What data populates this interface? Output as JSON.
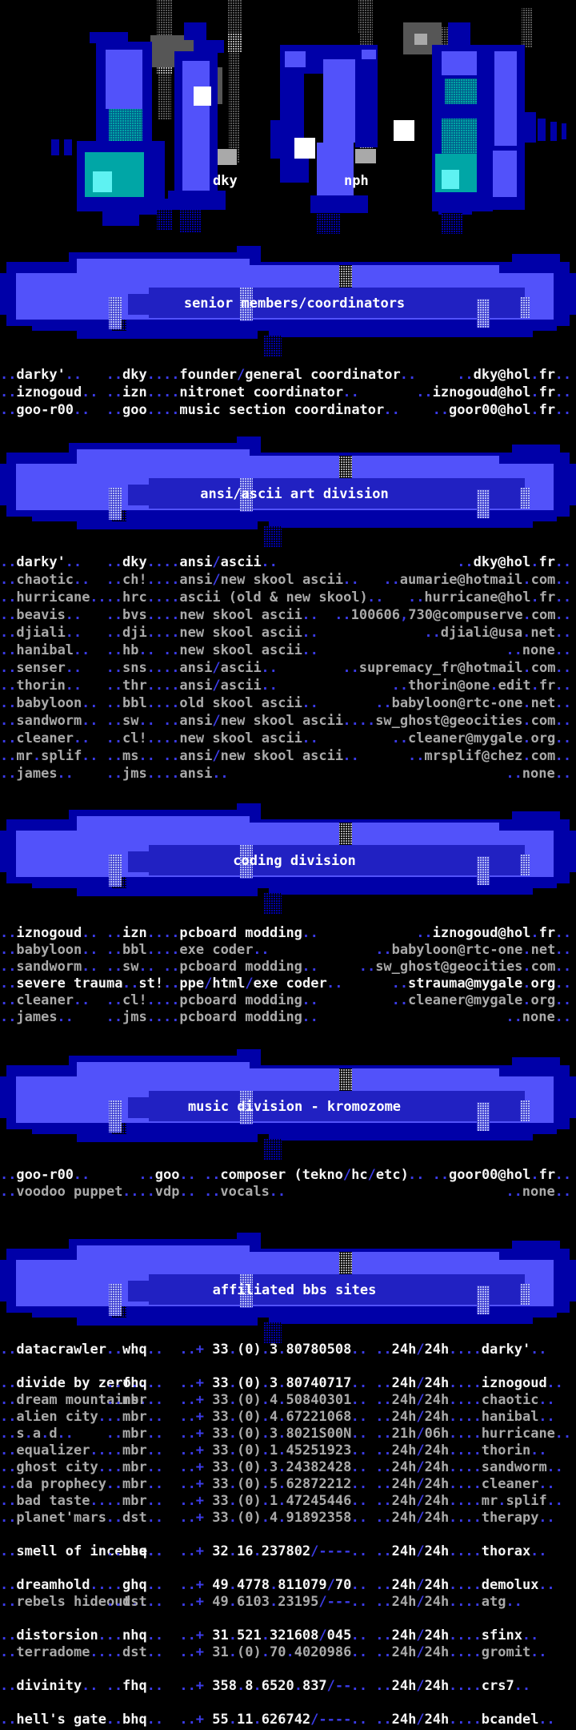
{
  "logo": {
    "artist_credits": [
      {
        "label": "dky"
      },
      {
        "label": "nph"
      }
    ]
  },
  "colors": {
    "bright_blue": "#5252fa",
    "dark_blue": "#0000a8",
    "mid_blue": "#2121c2",
    "teal": "#00a6a6",
    "cyan": "#5ef2f2",
    "white": "#f4f4f4",
    "grey": "#a9a9a9",
    "accent_blue": "#3b3be8"
  },
  "sections": [
    {
      "id": "senior",
      "banner": "senior members/coordinators",
      "type": "members",
      "rows": [
        {
          "name": "darky'",
          "handle": "dky",
          "role": "founder/general coordinator",
          "email": "dky@hol.fr",
          "bright": true
        },
        {
          "name": "iznogoud",
          "handle": "izn",
          "role": "nitronet coordinator",
          "email": "iznogoud@hol.fr",
          "bright": true
        },
        {
          "name": "goo-r00",
          "handle": "goo",
          "role": "music section coordinator",
          "email": "goor00@hol.fr",
          "bright": true
        }
      ]
    },
    {
      "id": "ansi",
      "banner": "ansi/ascii art division",
      "type": "members",
      "rows": [
        {
          "name": "darky'",
          "handle": "dky",
          "role": "ansi/ascii",
          "email": "dky@hol.fr",
          "bright": true
        },
        {
          "name": "chaotic",
          "handle": "ch!",
          "role": "ansi/new skool ascii",
          "email": "aumarie@hotmail.com",
          "bright": false
        },
        {
          "name": "hurricane",
          "handle": "hrc",
          "role": "ascii (old & new skool)",
          "email": "hurricane@hol.fr",
          "bright": false
        },
        {
          "name": "beavis",
          "handle": "bvs",
          "role": "new skool ascii",
          "email": "100606,730@compuserve.com",
          "bright": false
        },
        {
          "name": "djiali",
          "handle": "dji",
          "role": "new skool ascii",
          "email": "djiali@usa.net",
          "bright": false
        },
        {
          "name": "hanibal",
          "handle": "hb",
          "role": "new skool ascii",
          "email": "none",
          "bright": false
        },
        {
          "name": "senser",
          "handle": "sns",
          "role": "ansi/ascii",
          "email": "supremacy_fr@hotmail.com",
          "bright": false
        },
        {
          "name": "thorin",
          "handle": "thr",
          "role": "ansi/ascii",
          "email": "thorin@one.edit.fr",
          "bright": false
        },
        {
          "name": "babyloon",
          "handle": "bbl",
          "role": "old skool ascii",
          "email": "babyloon@rtc-one.net",
          "bright": false
        },
        {
          "name": "sandworm",
          "handle": "sw",
          "role": "ansi/new skool ascii",
          "email": "sw_ghost@geocities.com",
          "bright": false
        },
        {
          "name": "cleaner",
          "handle": "cl!",
          "role": "new skool ascii",
          "email": "cleaner@mygale.org",
          "bright": false
        },
        {
          "name": "mr.splif",
          "handle": "ms",
          "role": "ansi/new skool ascii",
          "email": "mrsplif@chez.com",
          "bright": false
        },
        {
          "name": "james",
          "handle": "jms",
          "role": "ansi",
          "email": "none",
          "bright": false
        }
      ]
    },
    {
      "id": "coding",
      "banner": "coding division",
      "type": "members",
      "rows": [
        {
          "name": "iznogoud",
          "handle": "izn",
          "role": "pcboard modding",
          "email": "iznogoud@hol.fr",
          "bright": true
        },
        {
          "name": "babyloon",
          "handle": "bbl",
          "role": "exe coder",
          "email": "babyloon@rtc-one.net",
          "bright": false
        },
        {
          "name": "sandworm",
          "handle": "sw",
          "role": "pcboard modding",
          "email": "sw_ghost@geocities.com",
          "bright": false
        },
        {
          "name": "severe trauma",
          "handle": "st!",
          "role": "ppe/html/exe coder",
          "email": "strauma@mygale.org",
          "bright": true
        },
        {
          "name": "cleaner",
          "handle": "cl!",
          "role": "pcboard modding",
          "email": "cleaner@mygale.org",
          "bright": false
        },
        {
          "name": "james",
          "handle": "jms",
          "role": "pcboard modding",
          "email": "none",
          "bright": false
        }
      ]
    },
    {
      "id": "music",
      "banner": "music division - kromozome",
      "type": "members",
      "rows": [
        {
          "name": "goo-r00",
          "handle": "goo",
          "role": "composer (tekno/hc/etc)",
          "email": "goor00@hol.fr",
          "bright": true
        },
        {
          "name": "voodoo puppet",
          "handle": "vdp",
          "role": "vocals",
          "email": "none",
          "bright": false
        }
      ]
    },
    {
      "id": "bbs",
      "banner": "affiliated bbs sites",
      "type": "bbs",
      "rows": [
        {
          "name": "datacrawler",
          "tier": "whq",
          "phone": "33.(0).3.80780508",
          "hours": "24h/24h",
          "sysop": "darky'",
          "bright": true,
          "group": 0
        },
        {
          "name": "divide by zero",
          "tier": "fhq",
          "phone": "33.(0).3.80740717",
          "hours": "24h/24h",
          "sysop": "iznogoud",
          "bright": true,
          "group": 1
        },
        {
          "name": "dream mountains",
          "tier": "mbr",
          "phone": "33.(0).4.50840301",
          "hours": "24h/24h",
          "sysop": "chaotic",
          "bright": false,
          "group": 1
        },
        {
          "name": "alien city",
          "tier": "mbr",
          "phone": "33.(0).4.67221068",
          "hours": "24h/24h",
          "sysop": "hanibal",
          "bright": false,
          "group": 1
        },
        {
          "name": "s.a.d",
          "tier": "mbr",
          "phone": "33.(0).3.8021S00N",
          "hours": "21h/06h",
          "sysop": "hurricane",
          "bright": false,
          "group": 1
        },
        {
          "name": "equalizer",
          "tier": "mbr",
          "phone": "33.(0).1.45251923",
          "hours": "24h/24h",
          "sysop": "thorin",
          "bright": false,
          "group": 1
        },
        {
          "name": "ghost city",
          "tier": "mbr",
          "phone": "33.(0).3.24382428",
          "hours": "24h/24h",
          "sysop": "sandworm",
          "bright": false,
          "group": 1
        },
        {
          "name": "da prophecy",
          "tier": "mbr",
          "phone": "33.(0).5.62872212",
          "hours": "24h/24h",
          "sysop": "cleaner",
          "bright": false,
          "group": 1
        },
        {
          "name": "bad taste",
          "tier": "mbr",
          "phone": "33.(0).1.47245446",
          "hours": "24h/24h",
          "sysop": "mr.splif",
          "bright": false,
          "group": 1
        },
        {
          "name": "planet'mars",
          "tier": "dst",
          "phone": "33.(0).4.91892358",
          "hours": "24h/24h",
          "sysop": "therapy",
          "bright": false,
          "group": 1
        },
        {
          "name": "smell of incense",
          "tier": "bhq",
          "phone": "32.16.237802/----",
          "hours": "24h/24h",
          "sysop": "thorax",
          "bright": true,
          "group": 2
        },
        {
          "name": "dreamhold",
          "tier": "ghq",
          "phone": "49.4778.811079/70",
          "hours": "24h/24h",
          "sysop": "demolux",
          "bright": true,
          "group": 3
        },
        {
          "name": "rebels hideout",
          "tier": "dst",
          "phone": "49.6103.23195/---",
          "hours": "24h/24h",
          "sysop": "atg",
          "bright": false,
          "group": 3
        },
        {
          "name": "distorsion",
          "tier": "nhq",
          "phone": "31.521.321608/045",
          "hours": "24h/24h",
          "sysop": "sfinx",
          "bright": true,
          "group": 4
        },
        {
          "name": "terradome",
          "tier": "dst",
          "phone": "31.(0).70.4020986",
          "hours": "24h/24h",
          "sysop": "gromit",
          "bright": false,
          "group": 4
        },
        {
          "name": "divinity",
          "tier": "fhq",
          "phone": "358.8.6520.837/--",
          "hours": "24h/24h",
          "sysop": "crs7",
          "bright": true,
          "group": 5
        },
        {
          "name": "hell's gate",
          "tier": "bhq",
          "phone": "55.11.626742/----",
          "hours": "24h/24h",
          "sysop": "bcandel",
          "bright": true,
          "group": 6
        }
      ]
    }
  ]
}
